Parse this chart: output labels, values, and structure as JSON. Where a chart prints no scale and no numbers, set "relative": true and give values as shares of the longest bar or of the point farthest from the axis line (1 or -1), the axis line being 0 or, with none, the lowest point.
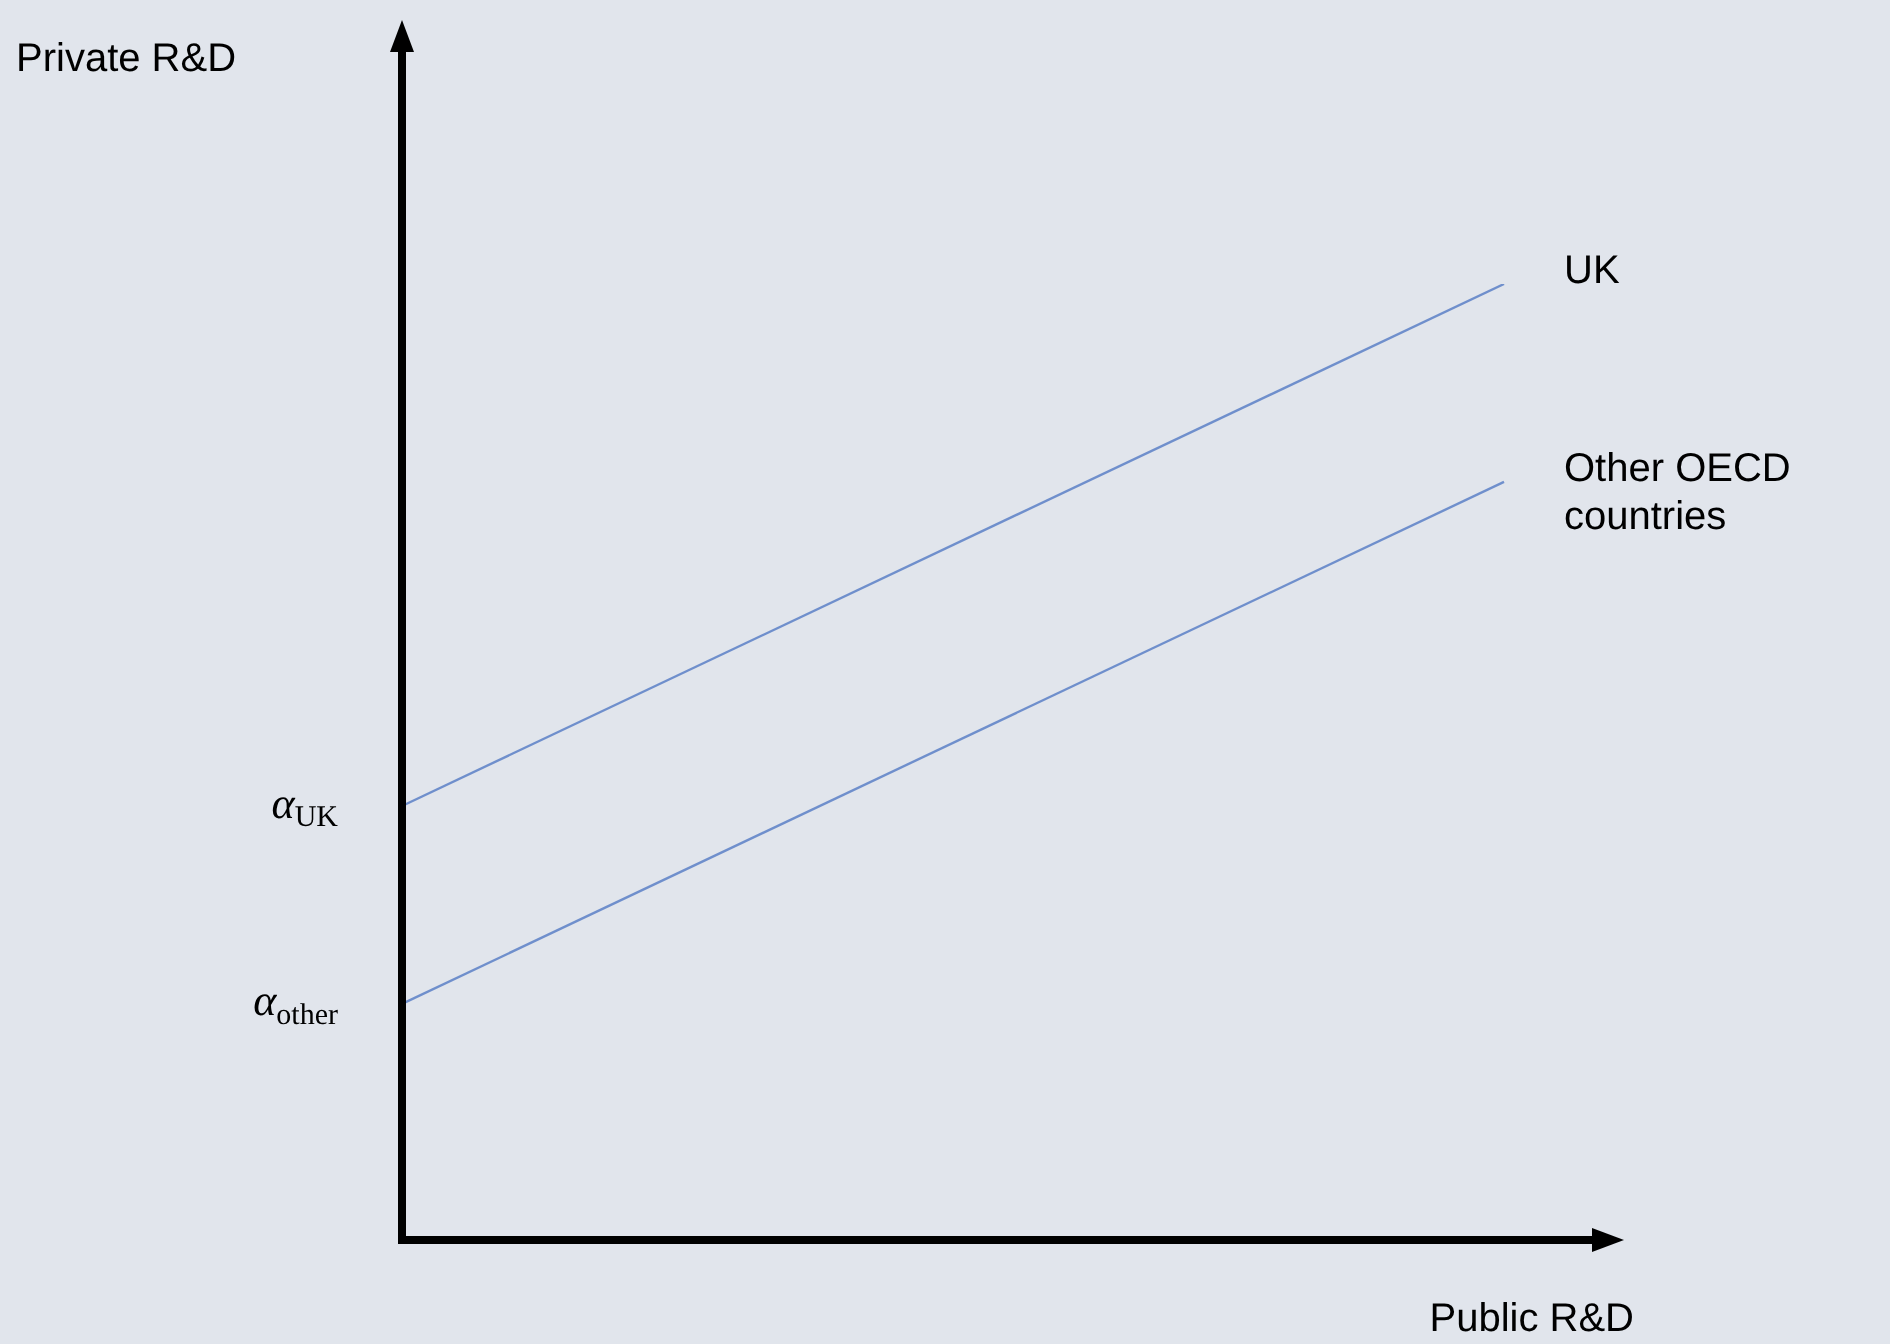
{
  "chart_data": {
    "type": "line",
    "xlabel": "Public R&D",
    "relative": true,
    "categories": [
      null,
      null
    ],
    "marker": "none",
    "line_style": "solid",
    "series": [
      {
        "name": "UK",
        "color": "#6f8fcc",
        "values": [
          0.454,
          1
        ]
      },
      {
        "name": "Other OECD countries",
        "color": "#6f8fcc",
        "values": [
          0.247,
          0.793
        ]
      }
    ],
    "annotations": [
      "α$_{UK}$",
      "α$_{other}$",
      "Private R&D"
    ]
  }
}
